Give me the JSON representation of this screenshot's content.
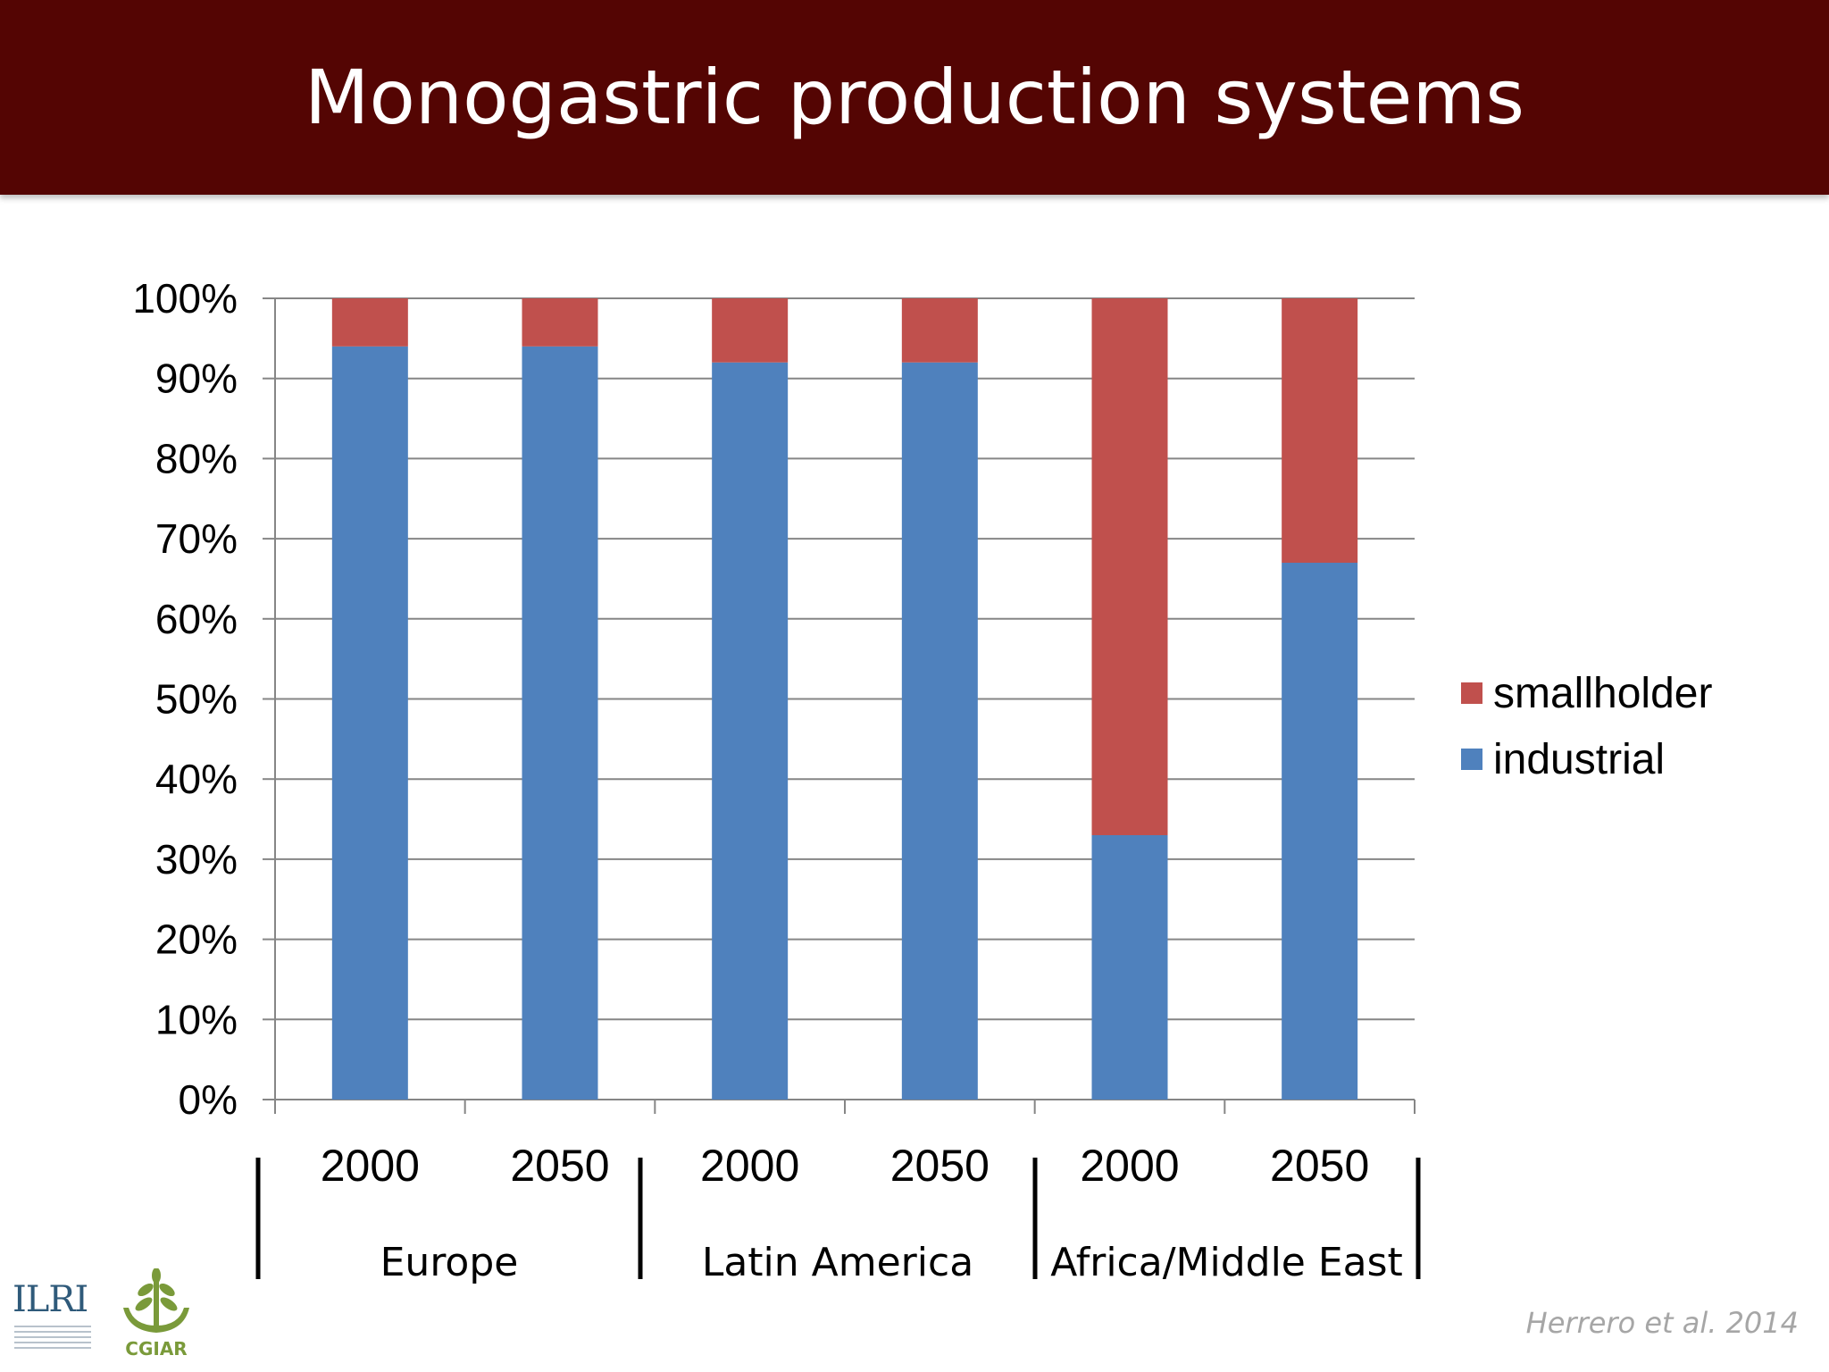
{
  "slide": {
    "title": "Monogastric production systems",
    "citation": "Herrero et al. 2014",
    "logos": [
      {
        "name": "ilri-logo",
        "text": "ILRI"
      },
      {
        "name": "cgiar-logo",
        "text": "CGIAR"
      }
    ]
  },
  "colors": {
    "title_bar": "#540503",
    "smallholder": "#c0504d",
    "industrial": "#4f81bd"
  },
  "chart_data": {
    "type": "bar",
    "stacked": true,
    "normalized_percent": true,
    "categories": [
      "2000",
      "2050",
      "2000",
      "2050",
      "2000",
      "2050"
    ],
    "groups": [
      {
        "label": "Europe",
        "categories": [
          "2000",
          "2050"
        ]
      },
      {
        "label": "Latin America",
        "categories": [
          "2000",
          "2050"
        ]
      },
      {
        "label": "Africa/Middle East",
        "categories": [
          "2000",
          "2050"
        ]
      }
    ],
    "series": [
      {
        "name": "industrial",
        "color": "#4f81bd",
        "values": [
          94,
          94,
          92,
          92,
          33,
          67
        ]
      },
      {
        "name": "smallholder",
        "color": "#c0504d",
        "values": [
          6,
          6,
          8,
          8,
          67,
          33
        ]
      }
    ],
    "ylim": [
      0,
      100
    ],
    "yticks": [
      "0%",
      "10%",
      "20%",
      "30%",
      "40%",
      "50%",
      "60%",
      "70%",
      "80%",
      "90%",
      "100%"
    ],
    "grid": true,
    "legend": {
      "position": "right",
      "entries": [
        "smallholder",
        "industrial"
      ]
    }
  }
}
